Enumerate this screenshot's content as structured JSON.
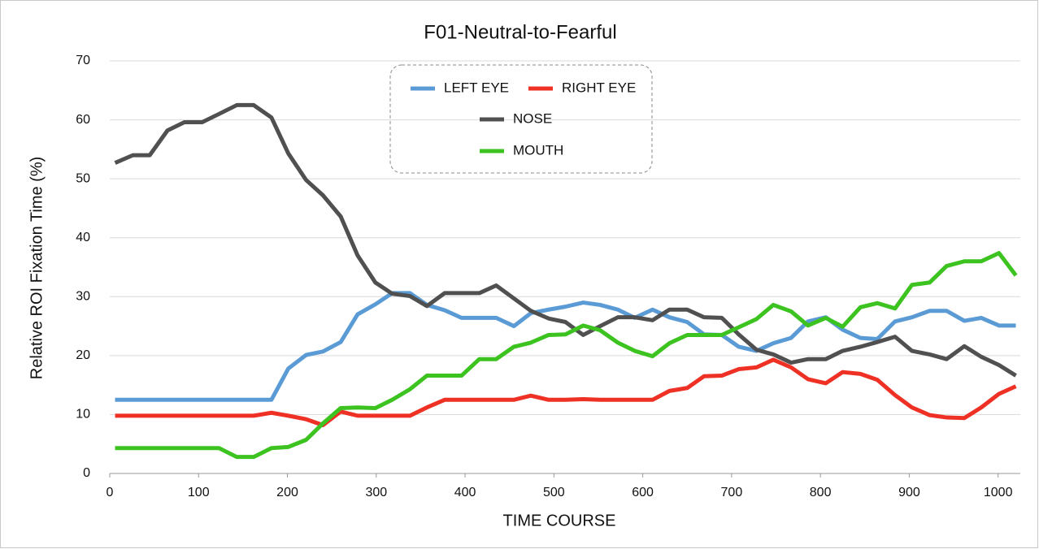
{
  "chart_data": {
    "type": "line",
    "title": "F01-Neutral-to-Fearful",
    "x_label": "TIME  COURSE",
    "y_label": "Relative  ROI  Fixation  Time  (%)",
    "x": [
      6,
      26,
      45,
      65,
      84,
      104,
      123,
      143,
      162,
      182,
      201,
      221,
      240,
      260,
      279,
      299,
      318,
      338,
      357,
      377,
      396,
      416,
      435,
      455,
      474,
      494,
      513,
      533,
      552,
      572,
      591,
      611,
      630,
      650,
      669,
      689,
      708,
      728,
      747,
      767,
      786,
      806,
      825,
      845,
      864,
      884,
      903,
      923,
      942,
      962,
      981,
      1001,
      1020
    ],
    "series": [
      {
        "name": "LEFT EYE",
        "color": "#5b9bd5",
        "values": [
          12.5,
          12.5,
          12.5,
          12.5,
          12.5,
          12.5,
          12.5,
          12.5,
          12.5,
          12.5,
          17.8,
          20.1,
          20.7,
          22.3,
          27,
          28.7,
          30.6,
          30.6,
          28.6,
          27.7,
          26.4,
          26.4,
          26.4,
          25,
          27.2,
          27.8,
          28.3,
          29,
          28.6,
          27.8,
          26.4,
          27.8,
          26.5,
          25.7,
          23.6,
          23.5,
          21.5,
          20.8,
          22.1,
          23,
          25.8,
          26.5,
          24.4,
          23,
          22.8,
          25.8,
          26.5,
          27.6,
          27.6,
          25.9,
          26.4,
          25.1,
          25.1
        ]
      },
      {
        "name": "RIGHT EYE",
        "color": "#ee3124",
        "values": [
          9.8,
          9.8,
          9.8,
          9.8,
          9.8,
          9.8,
          9.8,
          9.8,
          9.8,
          10.3,
          9.8,
          9.2,
          8.2,
          10.5,
          9.8,
          9.8,
          9.8,
          9.8,
          11.2,
          12.5,
          12.5,
          12.5,
          12.5,
          12.5,
          13.2,
          12.5,
          12.5,
          12.6,
          12.5,
          12.5,
          12.5,
          12.5,
          14,
          14.5,
          16.5,
          16.6,
          17.7,
          18,
          19.3,
          18,
          16,
          15.3,
          17.2,
          16.9,
          15.9,
          13.3,
          11.2,
          9.9,
          9.5,
          9.4,
          11.2,
          13.5,
          14.8
        ]
      },
      {
        "name": "NOSE",
        "color": "#505050",
        "values": [
          52.7,
          54,
          54,
          58.2,
          59.6,
          59.6,
          61,
          62.5,
          62.5,
          60.4,
          54.3,
          49.8,
          47.2,
          43.6,
          37,
          32.4,
          30.5,
          30.1,
          28.4,
          30.6,
          30.6,
          30.6,
          31.9,
          29.7,
          27.6,
          26.3,
          25.7,
          23.5,
          25,
          26.5,
          26.5,
          26,
          27.8,
          27.8,
          26.5,
          26.4,
          23.6,
          21,
          20.2,
          18.8,
          19.4,
          19.4,
          20.8,
          21.5,
          22.3,
          23.2,
          20.8,
          20.2,
          19.4,
          21.6,
          19.8,
          18.4,
          16.6
        ]
      },
      {
        "name": "MOUTH",
        "color": "#3cc320",
        "values": [
          4.3,
          4.3,
          4.3,
          4.3,
          4.3,
          4.3,
          4.3,
          2.8,
          2.8,
          4.3,
          4.5,
          5.7,
          8.5,
          11.1,
          11.2,
          11.1,
          12.5,
          14.3,
          16.6,
          16.6,
          16.6,
          19.4,
          19.4,
          21.5,
          22.2,
          23.5,
          23.6,
          25.1,
          24.3,
          22.2,
          20.8,
          19.9,
          22.1,
          23.5,
          23.5,
          23.5,
          24.8,
          26.2,
          28.6,
          27.5,
          25.1,
          26.4,
          24.9,
          28.2,
          28.9,
          28,
          32,
          32.4,
          35.2,
          36,
          36,
          37.4,
          33.6
        ]
      }
    ],
    "xlim": [
      0,
      1025
    ],
    "xticks": [
      0,
      100,
      200,
      300,
      400,
      500,
      600,
      700,
      800,
      900,
      1000
    ],
    "ylim": [
      0,
      70
    ],
    "yticks": [
      0,
      10,
      20,
      30,
      40,
      50,
      60,
      70
    ],
    "grid": true
  }
}
